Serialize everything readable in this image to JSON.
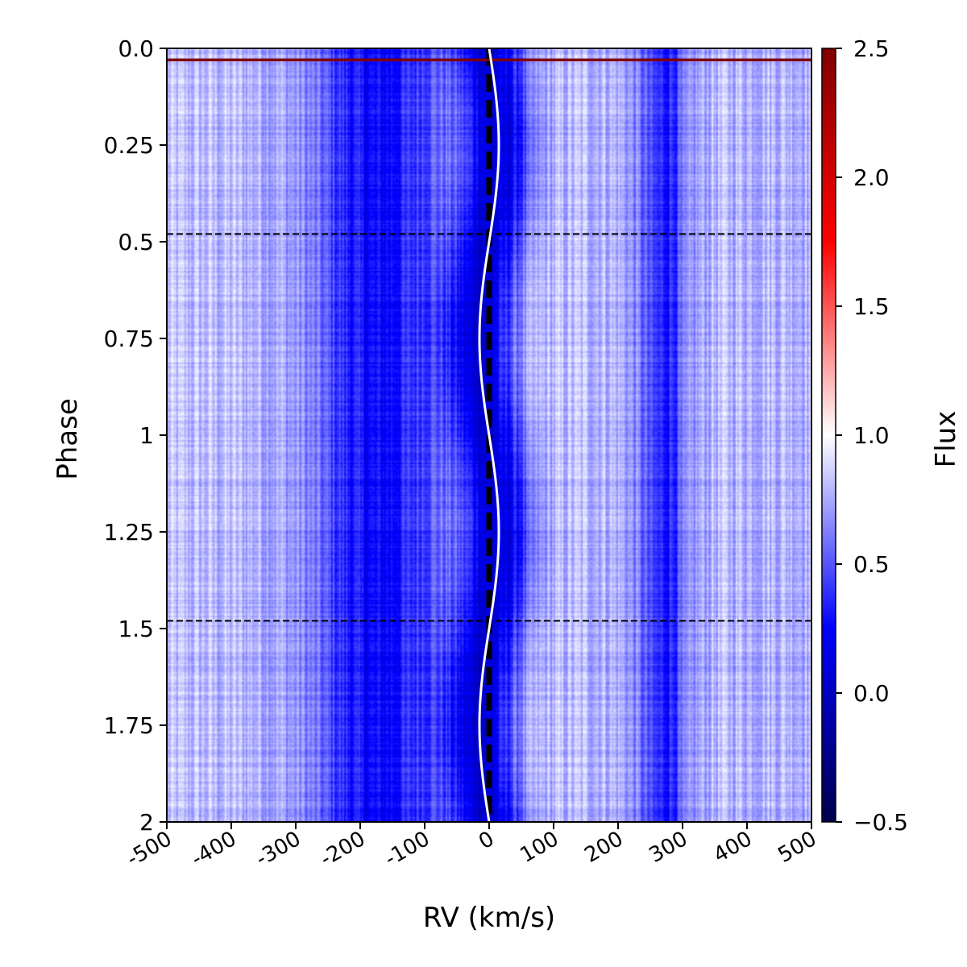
{
  "chart_data": {
    "type": "heatmap",
    "xlabel": "RV (km/s)",
    "ylabel": "Phase",
    "xlim": [
      -500,
      500
    ],
    "ylim": [
      0,
      2
    ],
    "y_inverted": true,
    "x_ticks": [
      -500,
      -400,
      -300,
      -200,
      -100,
      0,
      100,
      200,
      300,
      400,
      500
    ],
    "x_tick_labels": [
      "-500",
      "-400",
      "-300",
      "-200",
      "-100",
      "0",
      "100",
      "200",
      "300",
      "400",
      "500"
    ],
    "y_ticks": [
      0.0,
      0.25,
      0.5,
      0.75,
      1.0,
      1.25,
      1.5,
      1.75,
      2.0
    ],
    "y_tick_labels": [
      "0.0",
      "0.25",
      "0.5",
      "0.75",
      "1",
      "1.25",
      "1.5",
      "1.75",
      "2"
    ],
    "colorbar": {
      "label": "Flux",
      "range": [
        -0.5,
        2.5
      ],
      "ticks": [
        2.5,
        2.0,
        1.5,
        1.0,
        0.5,
        0.0,
        -0.5
      ],
      "tick_labels": [
        "2.5",
        "2.0",
        "1.5",
        "1.0",
        "0.5",
        "0.0",
        "−0.5"
      ],
      "colormap": "seismic",
      "colors": [
        "#00004c",
        "#0000ff",
        "#ffffff",
        "#ff0000",
        "#800000"
      ]
    },
    "absorption_features": [
      {
        "rv": -175,
        "width": 70,
        "depth": 0.55
      },
      {
        "rv": 0,
        "width": 38,
        "depth": 0.7
      },
      {
        "rv": 270,
        "width": 30,
        "depth": 0.45
      }
    ],
    "continuum_flux": 0.8,
    "rv_curve": {
      "color": "#ffffff",
      "amplitude_kms": 15,
      "x": [
        0.0,
        0.125,
        0.25,
        0.375,
        0.5,
        0.625,
        0.75,
        0.875,
        1.0,
        1.125,
        1.25,
        1.375,
        1.5,
        1.625,
        1.75,
        1.875,
        2.0
      ],
      "y": [
        0,
        10.6,
        15,
        10.6,
        0,
        -10.6,
        -15,
        -10.6,
        0,
        10.6,
        15,
        10.6,
        0,
        -10.6,
        -15,
        -10.6,
        0
      ]
    },
    "vertical_dashed_line": {
      "rv": 0,
      "color": "#000000"
    },
    "horizontal_dashed_lines": [
      {
        "phase": 0.48,
        "color": "#000000"
      },
      {
        "phase": 1.48,
        "color": "#000000"
      }
    ],
    "horizontal_solid_line": {
      "phase": 0.03,
      "color": "#800000"
    }
  }
}
